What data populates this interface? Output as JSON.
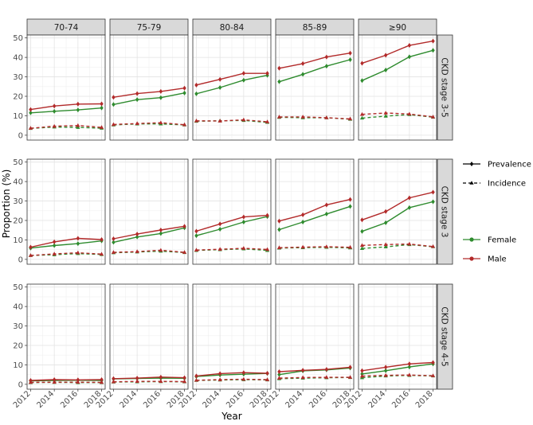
{
  "chart_data": {
    "type": "line",
    "xlabel": "Year",
    "ylabel": "Proportion (%)",
    "x": [
      2012,
      2014,
      2016,
      2018
    ],
    "x_ticks": [
      "2012",
      "2014",
      "2016",
      "2018"
    ],
    "ylim": [
      0,
      50
    ],
    "y_ticks": [
      "0",
      "10",
      "20",
      "30",
      "40",
      "50"
    ],
    "grid": true,
    "legend_position": "right",
    "legend": {
      "linetype": [
        {
          "label": "Prevalence",
          "style": "solid"
        },
        {
          "label": "Incidence",
          "style": "dashed"
        }
      ],
      "colour": [
        {
          "label": "Female",
          "color": "#2e8b2e"
        },
        {
          "label": "Male",
          "color": "#b22a2a"
        }
      ]
    },
    "colors": {
      "Female": "#2e8b2e",
      "Male": "#b22a2a"
    },
    "col_panels": [
      "70-74",
      "75-79",
      "80-84",
      "85-89",
      "≥90"
    ],
    "row_panels": [
      "CKD stage 3-5",
      "CKD stage 3",
      "CKD stage 4-5"
    ],
    "panels": [
      [
        {
          "series": [
            {
              "name": "Female",
              "measure": "Prevalence",
              "values": [
                11.5,
                12.3,
                13.0,
                14.0
              ]
            },
            {
              "name": "Male",
              "measure": "Prevalence",
              "values": [
                13.2,
                15.0,
                16.0,
                16.1
              ]
            },
            {
              "name": "Female",
              "measure": "Incidence",
              "values": [
                3.5,
                4.2,
                4.0,
                3.6
              ]
            },
            {
              "name": "Male",
              "measure": "Incidence",
              "values": [
                3.6,
                4.6,
                5.0,
                4.0
              ]
            }
          ]
        },
        {
          "series": [
            {
              "name": "Female",
              "measure": "Prevalence",
              "values": [
                15.8,
                18.3,
                19.3,
                21.7
              ]
            },
            {
              "name": "Male",
              "measure": "Prevalence",
              "values": [
                19.5,
                21.4,
                22.5,
                24.2
              ]
            },
            {
              "name": "Female",
              "measure": "Incidence",
              "values": [
                5.3,
                5.8,
                5.8,
                5.3
              ]
            },
            {
              "name": "Male",
              "measure": "Incidence",
              "values": [
                5.5,
                6.0,
                6.4,
                5.4
              ]
            }
          ]
        },
        {
          "series": [
            {
              "name": "Female",
              "measure": "Prevalence",
              "values": [
                21.3,
                24.5,
                28.3,
                30.8
              ]
            },
            {
              "name": "Male",
              "measure": "Prevalence",
              "values": [
                25.8,
                28.7,
                31.8,
                31.8
              ]
            },
            {
              "name": "Female",
              "measure": "Incidence",
              "values": [
                7.2,
                7.4,
                7.6,
                6.6
              ]
            },
            {
              "name": "Male",
              "measure": "Incidence",
              "values": [
                7.4,
                7.3,
                7.9,
                6.9
              ]
            }
          ]
        },
        {
          "series": [
            {
              "name": "Female",
              "measure": "Prevalence",
              "values": [
                27.5,
                31.3,
                35.5,
                38.8
              ]
            },
            {
              "name": "Male",
              "measure": "Prevalence",
              "values": [
                34.4,
                36.8,
                40.2,
                42.2
              ]
            },
            {
              "name": "Female",
              "measure": "Incidence",
              "values": [
                9.2,
                9.0,
                9.0,
                8.2
              ]
            },
            {
              "name": "Male",
              "measure": "Incidence",
              "values": [
                9.4,
                9.4,
                9.0,
                8.4
              ]
            }
          ]
        },
        {
          "series": [
            {
              "name": "Female",
              "measure": "Prevalence",
              "values": [
                28.1,
                33.5,
                40.3,
                43.6
              ]
            },
            {
              "name": "Male",
              "measure": "Prevalence",
              "values": [
                37.0,
                41.1,
                46.2,
                48.4
              ]
            },
            {
              "name": "Female",
              "measure": "Incidence",
              "values": [
                8.8,
                9.8,
                10.6,
                9.3
              ]
            },
            {
              "name": "Male",
              "measure": "Incidence",
              "values": [
                10.7,
                11.4,
                10.9,
                9.4
              ]
            }
          ]
        }
      ],
      [
        {
          "series": [
            {
              "name": "Female",
              "measure": "Prevalence",
              "values": [
                5.8,
                7.1,
                8.1,
                9.5
              ]
            },
            {
              "name": "Male",
              "measure": "Prevalence",
              "values": [
                6.3,
                9.0,
                10.8,
                10.2
              ]
            },
            {
              "name": "Female",
              "measure": "Incidence",
              "values": [
                2.0,
                2.4,
                3.0,
                2.5
              ]
            },
            {
              "name": "Male",
              "measure": "Incidence",
              "values": [
                2.0,
                2.8,
                3.4,
                2.7
              ]
            }
          ]
        },
        {
          "series": [
            {
              "name": "Female",
              "measure": "Prevalence",
              "values": [
                8.8,
                11.5,
                13.3,
                16.2
              ]
            },
            {
              "name": "Male",
              "measure": "Prevalence",
              "values": [
                10.6,
                13.0,
                15.1,
                17.0
              ]
            },
            {
              "name": "Female",
              "measure": "Incidence",
              "values": [
                3.4,
                3.8,
                4.2,
                3.5
              ]
            },
            {
              "name": "Male",
              "measure": "Incidence",
              "values": [
                3.6,
                4.0,
                4.7,
                3.6
              ]
            }
          ]
        },
        {
          "series": [
            {
              "name": "Female",
              "measure": "Prevalence",
              "values": [
                12.2,
                15.5,
                19.2,
                22.0
              ]
            },
            {
              "name": "Male",
              "measure": "Prevalence",
              "values": [
                14.5,
                18.2,
                21.8,
                22.6
              ]
            },
            {
              "name": "Female",
              "measure": "Incidence",
              "values": [
                4.6,
                5.0,
                5.4,
                4.6
              ]
            },
            {
              "name": "Male",
              "measure": "Incidence",
              "values": [
                4.8,
                5.2,
                5.7,
                5.1
              ]
            }
          ]
        },
        {
          "series": [
            {
              "name": "Female",
              "measure": "Prevalence",
              "values": [
                15.3,
                19.2,
                23.3,
                27.2
              ]
            },
            {
              "name": "Male",
              "measure": "Prevalence",
              "values": [
                19.7,
                22.9,
                28.0,
                30.8
              ]
            },
            {
              "name": "Female",
              "measure": "Incidence",
              "values": [
                5.8,
                6.0,
                6.2,
                5.9
              ]
            },
            {
              "name": "Male",
              "measure": "Incidence",
              "values": [
                6.0,
                6.3,
                6.5,
                6.2
              ]
            }
          ]
        },
        {
          "series": [
            {
              "name": "Female",
              "measure": "Prevalence",
              "values": [
                14.4,
                18.8,
                26.6,
                29.6
              ]
            },
            {
              "name": "Male",
              "measure": "Prevalence",
              "values": [
                20.3,
                24.6,
                31.6,
                34.5
              ]
            },
            {
              "name": "Female",
              "measure": "Incidence",
              "values": [
                5.6,
                6.4,
                7.6,
                6.5
              ]
            },
            {
              "name": "Male",
              "measure": "Incidence",
              "values": [
                7.2,
                7.6,
                7.9,
                6.6
              ]
            }
          ]
        }
      ],
      [
        {
          "series": [
            {
              "name": "Female",
              "measure": "Prevalence",
              "values": [
                1.8,
                2.0,
                2.1,
                2.0
              ]
            },
            {
              "name": "Male",
              "measure": "Prevalence",
              "values": [
                2.0,
                2.4,
                2.3,
                2.4
              ]
            },
            {
              "name": "Female",
              "measure": "Incidence",
              "values": [
                0.9,
                1.0,
                0.9,
                0.9
              ]
            },
            {
              "name": "Male",
              "measure": "Incidence",
              "values": [
                1.0,
                1.1,
                1.1,
                1.0
              ]
            }
          ]
        },
        {
          "series": [
            {
              "name": "Female",
              "measure": "Prevalence",
              "values": [
                2.8,
                3.0,
                3.2,
                3.1
              ]
            },
            {
              "name": "Male",
              "measure": "Prevalence",
              "values": [
                2.9,
                3.2,
                3.7,
                3.4
              ]
            },
            {
              "name": "Female",
              "measure": "Incidence",
              "values": [
                1.2,
                1.3,
                1.4,
                1.3
              ]
            },
            {
              "name": "Male",
              "measure": "Incidence",
              "values": [
                1.3,
                1.5,
                1.5,
                1.4
              ]
            }
          ]
        },
        {
          "series": [
            {
              "name": "Female",
              "measure": "Prevalence",
              "values": [
                4.0,
                4.8,
                5.2,
                5.6
              ]
            },
            {
              "name": "Male",
              "measure": "Prevalence",
              "values": [
                4.3,
                5.5,
                6.0,
                5.7
              ]
            },
            {
              "name": "Female",
              "measure": "Incidence",
              "values": [
                2.0,
                2.2,
                2.4,
                2.3
              ]
            },
            {
              "name": "Male",
              "measure": "Incidence",
              "values": [
                2.1,
                2.4,
                2.6,
                2.4
              ]
            }
          ]
        },
        {
          "series": [
            {
              "name": "Female",
              "measure": "Prevalence",
              "values": [
                5.0,
                6.9,
                7.4,
                8.4
              ]
            },
            {
              "name": "Male",
              "measure": "Prevalence",
              "values": [
                6.5,
                7.2,
                7.7,
                8.8
              ]
            },
            {
              "name": "Female",
              "measure": "Incidence",
              "values": [
                2.9,
                3.2,
                3.4,
                3.5
              ]
            },
            {
              "name": "Male",
              "measure": "Incidence",
              "values": [
                3.2,
                3.5,
                3.6,
                3.6
              ]
            }
          ]
        },
        {
          "series": [
            {
              "name": "Female",
              "measure": "Prevalence",
              "values": [
                5.3,
                7.0,
                8.9,
                10.5
              ]
            },
            {
              "name": "Male",
              "measure": "Prevalence",
              "values": [
                7.0,
                8.8,
                10.5,
                11.2
              ]
            },
            {
              "name": "Female",
              "measure": "Incidence",
              "values": [
                3.4,
                4.3,
                4.6,
                4.3
              ]
            },
            {
              "name": "Male",
              "measure": "Incidence",
              "values": [
                4.2,
                4.6,
                4.8,
                4.4
              ]
            }
          ]
        }
      ]
    ]
  }
}
